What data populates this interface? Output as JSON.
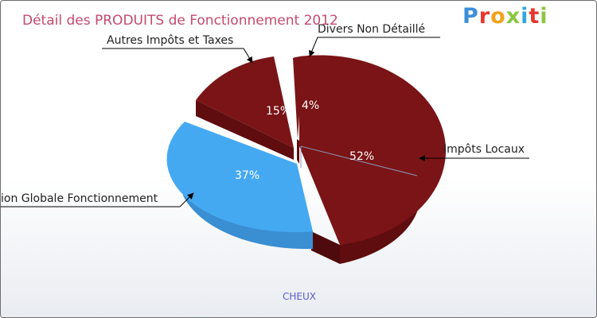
{
  "logo_text": "Proxiti",
  "commune": "CHEUX",
  "chart_data": {
    "type": "pie",
    "title": "Détail des PRODUITS de Fonctionnement 2012",
    "slices": [
      {
        "label": "Impôts Locaux",
        "value": 52,
        "pct_label": "52%",
        "color": "#7a1416",
        "exploded": false
      },
      {
        "label": "Dotation Globale Fonctionnement",
        "visible_label": "ion Globale Fonctionnement",
        "value": 37,
        "pct_label": "37%",
        "color": "#45a9f2",
        "exploded": true
      },
      {
        "label": "Autres Impôts et Taxes",
        "value": 15,
        "pct_label": "15%",
        "color": "#7a1416",
        "exploded": true
      },
      {
        "label": "Divers Non Détaillé",
        "value": 4,
        "pct_label": "4%",
        "color": "#7a1416",
        "exploded": true
      }
    ]
  }
}
